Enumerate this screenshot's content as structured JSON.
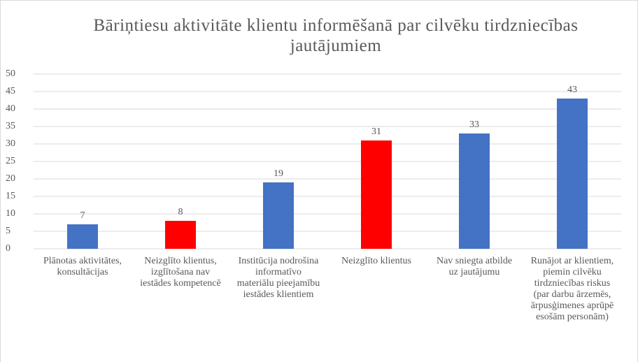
{
  "chart_data": {
    "type": "bar",
    "title": "Bāriņtiesu aktivitāte klientu informēšanā par cilvēku tirdzniecības jautājumiem",
    "categories": [
      "Plānotas aktivitātes, konsultācijas",
      "Neizglīto klientus, izglītošana nav iestādes kompetencē",
      "Institūcija nodrošina informatīvo materiālu pieejamību iestādes klientiem",
      "Neizglīto klientus",
      "Nav sniegta atbilde uz jautājumu",
      "Runājot ar klientiem, piemin cilvēku tirdzniecības riskus (par darbu ārzemēs, ārpusģimenes aprūpē esošām personām)"
    ],
    "values": [
      7,
      8,
      19,
      31,
      33,
      43
    ],
    "colors": [
      "#4472c4",
      "#ff0000",
      "#4472c4",
      "#ff0000",
      "#4472c4",
      "#4472c4"
    ],
    "ylim": [
      0,
      50
    ],
    "yticks": [
      0,
      5,
      10,
      15,
      20,
      25,
      30,
      35,
      40,
      45,
      50
    ],
    "grid": true
  }
}
